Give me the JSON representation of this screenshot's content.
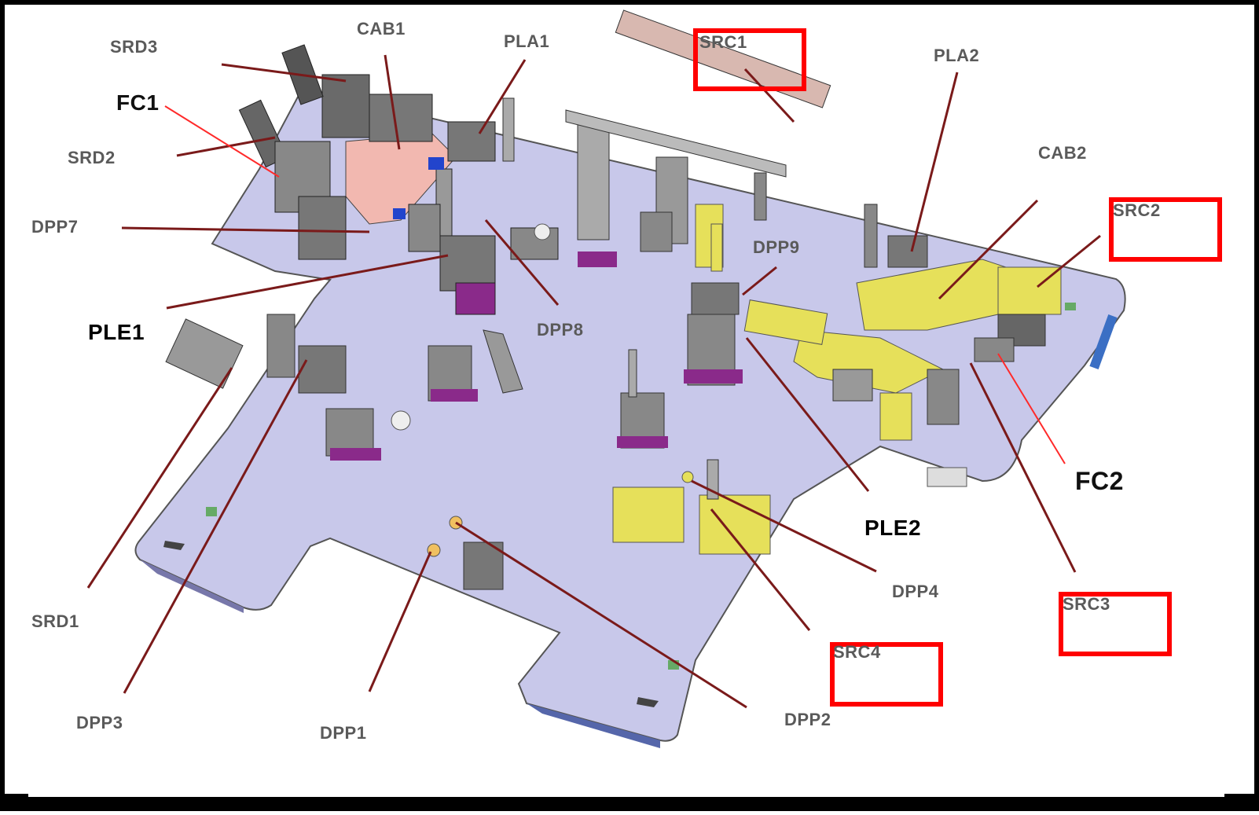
{
  "diagram": {
    "labels": {
      "srd3": "SRD3",
      "cab1": "CAB1",
      "pla1": "PLA1",
      "src1": "SRC1",
      "pla2": "PLA2",
      "fc1": "FC1",
      "srd2": "SRD2",
      "cab2": "CAB2",
      "dpp7": "DPP7",
      "src2": "SRC2",
      "dpp9": "DPP9",
      "ple1": "PLE1",
      "dpp8": "DPP8",
      "fc2": "FC2",
      "ple2": "PLE2",
      "dpp4": "DPP4",
      "srd1": "SRD1",
      "src3": "SRC3",
      "src4": "SRC4",
      "dpp3": "DPP3",
      "dpp1": "DPP1",
      "dpp2": "DPP2"
    },
    "highlighted_labels": [
      "SRC1",
      "SRC2",
      "SRC3",
      "SRC4"
    ],
    "colors": {
      "plate": "#c8c8ea",
      "leader_line": "#7a1a1a",
      "fc_leader_line": "#ff2a2a",
      "highlight_box": "#ff0000",
      "yellow_fixture": "#e6e05a",
      "pink_fixture": "#f2b8b0",
      "frame": "#000000"
    }
  }
}
